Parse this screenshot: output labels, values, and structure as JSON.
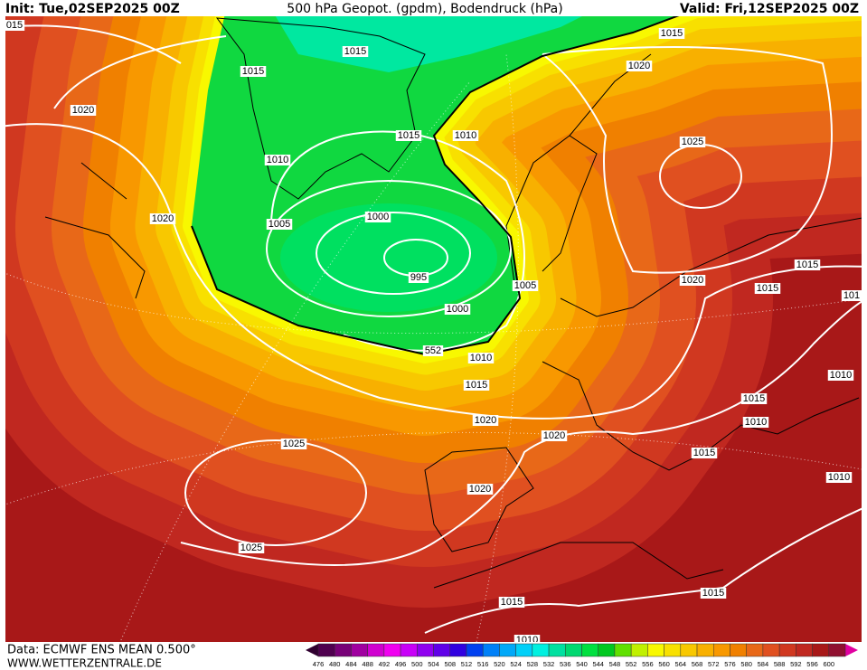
{
  "header": {
    "init": "Init: Tue,02SEP2025 00Z",
    "title": "500 hPa Geopot. (gpdm), Bodendruck (hPa)",
    "valid": "Valid: Fri,12SEP2025 00Z"
  },
  "footer": {
    "data": "Data: ECMWF ENS MEAN 0.500°",
    "site": "WWW.WETTERZENTRALE.DE"
  },
  "contour_labels": [
    "015",
    "1015",
    "1020",
    "1015",
    "1015",
    "1020",
    "1015",
    "1010",
    "1025",
    "1010",
    "1020",
    "1005",
    "1000",
    "995",
    "1005",
    "1020",
    "1015",
    "1015",
    "101",
    "1000",
    "552",
    "1010",
    "1015",
    "1010",
    "1015",
    "1010",
    "1020",
    "1020",
    "1025",
    "1015",
    "1010",
    "1020",
    "1025",
    "1015",
    "1015",
    "1010"
  ],
  "legend": {
    "levels": [
      476,
      480,
      484,
      488,
      492,
      496,
      500,
      504,
      508,
      512,
      516,
      520,
      524,
      528,
      532,
      536,
      540,
      544,
      548,
      552,
      556,
      560,
      564,
      568,
      572,
      576,
      580,
      584,
      588,
      592,
      596,
      600
    ],
    "colors": [
      "#500050",
      "#780078",
      "#a000a0",
      "#d000d0",
      "#f000f0",
      "#c800f8",
      "#9000f0",
      "#6000e8",
      "#3000e0",
      "#0040f0",
      "#0080f8",
      "#00a8f8",
      "#00d0f8",
      "#00f0e0",
      "#00e0a0",
      "#00d870",
      "#00e040",
      "#00c820",
      "#60e000",
      "#c0f000",
      "#f8f800",
      "#f8e000",
      "#f8c800",
      "#f8b000",
      "#f89800",
      "#f08000",
      "#e86818",
      "#e05020",
      "#d03820",
      "#c02820",
      "#a81818",
      "#901030"
    ]
  }
}
